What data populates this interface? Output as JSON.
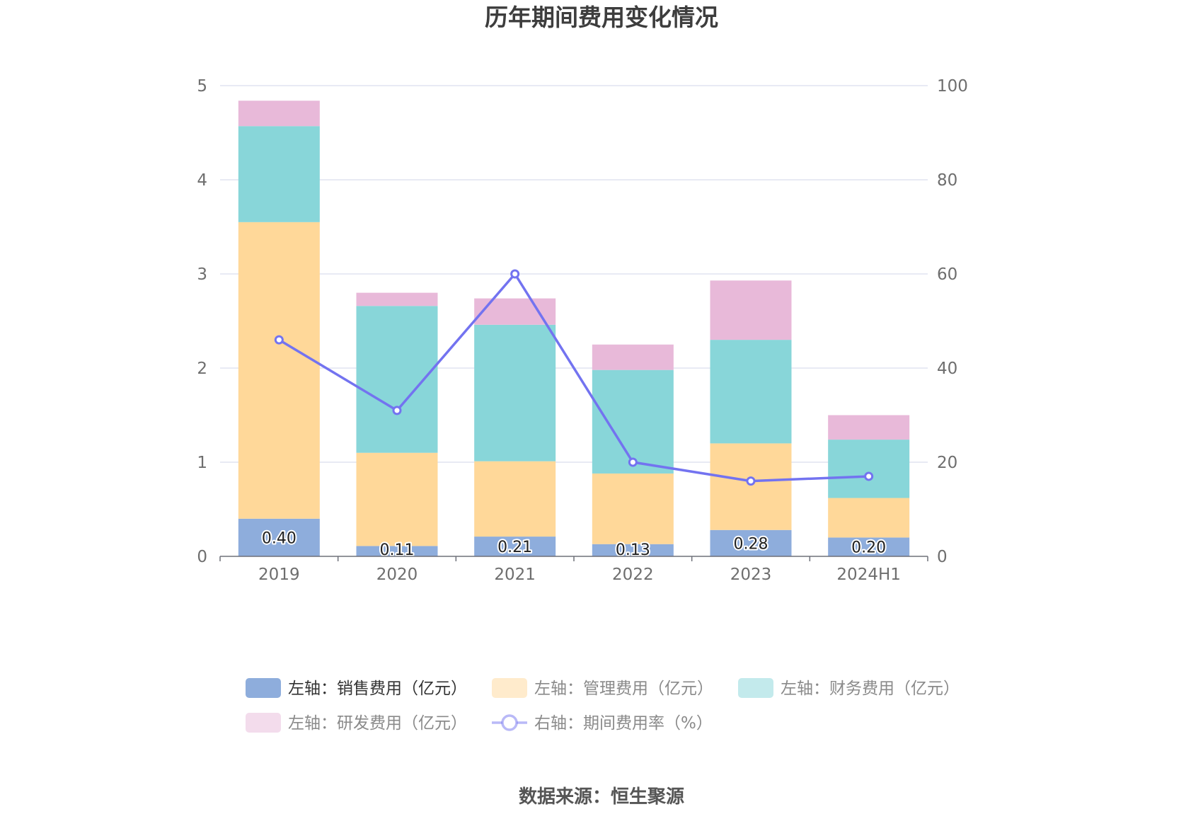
{
  "title": "历年期间费用变化情况",
  "source": "数据来源：恒生聚源",
  "colors": {
    "sales": "#8eaddc",
    "admin": "#ffd899",
    "finance": "#88d6d9",
    "rd": "#e8b9d9",
    "rate": "#7373f0"
  },
  "legend": [
    {
      "label": "左轴：销售费用（亿元）",
      "key": "sales",
      "kind": "bar"
    },
    {
      "label": "左轴：管理费用（亿元）",
      "key": "admin",
      "kind": "bar"
    },
    {
      "label": "左轴：财务费用（亿元）",
      "key": "finance",
      "kind": "bar"
    },
    {
      "label": "左轴：研发费用（亿元）",
      "key": "rd",
      "kind": "bar"
    },
    {
      "label": "右轴：期间费用率（%）",
      "key": "rate",
      "kind": "line"
    }
  ],
  "chart_data": {
    "type": "bar",
    "stacked": true,
    "categories": [
      "2019",
      "2020",
      "2021",
      "2022",
      "2023",
      "2024H1"
    ],
    "series": [
      {
        "name": "左轴：销售费用（亿元）",
        "key": "sales",
        "axis": "left",
        "values": [
          0.4,
          0.11,
          0.21,
          0.13,
          0.28,
          0.2
        ],
        "labels": [
          "0.40",
          "0.11",
          "0.21",
          "0.13",
          "0.28",
          "0.20"
        ]
      },
      {
        "name": "左轴：管理费用（亿元）",
        "key": "admin",
        "axis": "left",
        "values": [
          3.15,
          0.99,
          0.8,
          0.75,
          0.92,
          0.42
        ]
      },
      {
        "name": "左轴：财务费用（亿元）",
        "key": "finance",
        "axis": "left",
        "values": [
          1.02,
          1.56,
          1.45,
          1.1,
          1.1,
          0.62
        ]
      },
      {
        "name": "左轴：研发费用（亿元）",
        "key": "rd",
        "axis": "left",
        "values": [
          0.27,
          0.14,
          0.28,
          0.27,
          0.63,
          0.26
        ]
      },
      {
        "name": "右轴：期间费用率（%）",
        "key": "rate",
        "axis": "right",
        "type": "line",
        "values": [
          46.0,
          31.0,
          60.0,
          20.0,
          16.0,
          17.0
        ]
      }
    ],
    "left_axis": {
      "ylim": [
        0,
        5
      ],
      "ticks": [
        "0",
        "1",
        "2",
        "3",
        "4",
        "5"
      ]
    },
    "right_axis": {
      "ylim": [
        0,
        100
      ],
      "ticks": [
        "0",
        "20",
        "40",
        "60",
        "80",
        "100"
      ]
    },
    "grid": true,
    "legend_position": "bottom"
  }
}
